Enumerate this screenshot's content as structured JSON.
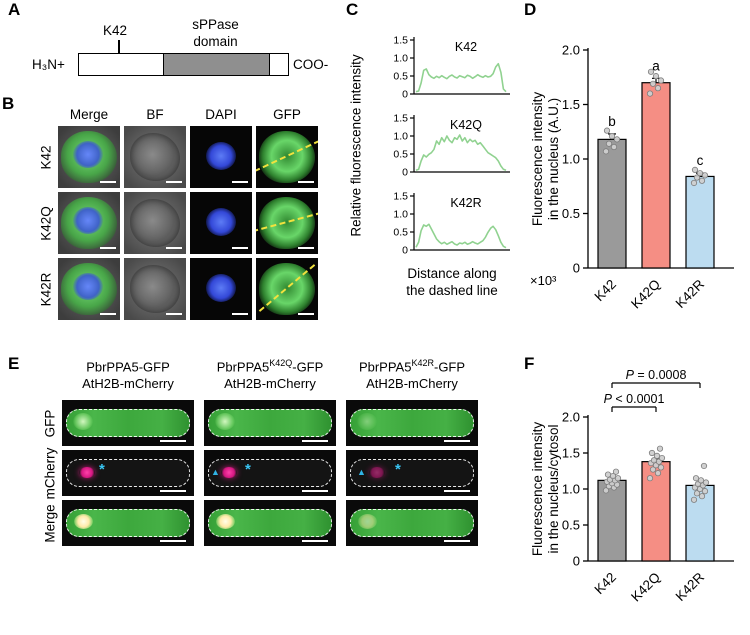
{
  "figure": {
    "panel_a": {
      "label": "A",
      "n_terminus": "H₃N+",
      "c_terminus": "COO-",
      "residue_label": "K42",
      "domain_line1": "sPPase",
      "domain_line2": "domain"
    },
    "panel_b": {
      "label": "B",
      "columns": [
        "Merge",
        "BF",
        "DAPI",
        "GFP"
      ],
      "rows": [
        "K42",
        "K42Q",
        "K42R"
      ]
    },
    "panel_c": {
      "label": "C",
      "ylabel": "Relative fluorescence intensity",
      "xlabel_line1": "Distance along",
      "xlabel_line2": "the dashed line"
    },
    "panel_d": {
      "label": "D",
      "ylabel_line1": "Fluorescence intensity",
      "ylabel_line2": "in the nucleus (A.U.)",
      "scale_label": "×10³"
    },
    "panel_e": {
      "label": "E",
      "columns": [
        {
          "line1_pre": "PbrPPA5",
          "line1_sup": "",
          "line1_post": "-GFP",
          "line2": "AtH2B-mCherry"
        },
        {
          "line1_pre": "PbrPPA5",
          "line1_sup": "K42Q",
          "line1_post": "-GFP",
          "line2": "AtH2B-mCherry"
        },
        {
          "line1_pre": "PbrPPA5",
          "line1_sup": "K42R",
          "line1_post": "-GFP",
          "line2": "AtH2B-mCherry"
        }
      ],
      "rows": [
        "GFP",
        "mCherry",
        "Merge"
      ],
      "markers": {
        "asterisk": "*",
        "arrowhead": "▲"
      }
    },
    "panel_f": {
      "label": "F",
      "ylabel_line1": "Fluorescence intensity",
      "ylabel_line2": "in the nucleus/cytosol"
    }
  },
  "chart_data": [
    {
      "panel": "C",
      "type": "line",
      "ylabel": "Relative fluorescence intensity",
      "xlabel": "Distance along the dashed line",
      "ylim": [
        0,
        1.5
      ],
      "yticks": [
        0,
        0.5,
        1.0,
        1.5
      ],
      "line_color": "#90d290",
      "subplots": [
        {
          "name": "K42",
          "y": [
            0.04,
            0.06,
            0.3,
            0.68,
            0.72,
            0.55,
            0.48,
            0.44,
            0.5,
            0.46,
            0.52,
            0.47,
            0.43,
            0.5,
            0.54,
            0.48,
            0.45,
            0.52,
            0.49,
            0.46,
            0.53,
            0.5,
            0.44,
            0.49,
            0.55,
            0.5,
            0.47,
            0.52,
            0.48,
            0.5,
            0.58,
            0.78,
            0.88,
            0.62,
            0.12,
            0.04
          ]
        },
        {
          "name": "K42Q",
          "y": [
            0.02,
            0.05,
            0.3,
            0.48,
            0.42,
            0.5,
            0.55,
            0.65,
            0.9,
            0.8,
            1.0,
            0.88,
            1.05,
            0.92,
            0.85,
            1.0,
            0.95,
            1.08,
            0.9,
            1.0,
            0.85,
            0.95,
            0.88,
            0.92,
            0.8,
            0.85,
            0.75,
            0.65,
            0.55,
            0.5,
            0.45,
            0.4,
            0.3,
            0.15,
            0.05,
            0.02
          ]
        },
        {
          "name": "K42R",
          "y": [
            0.05,
            0.2,
            0.55,
            0.72,
            0.68,
            0.74,
            0.6,
            0.45,
            0.3,
            0.22,
            0.16,
            0.2,
            0.14,
            0.18,
            0.22,
            0.15,
            0.12,
            0.18,
            0.16,
            0.2,
            0.14,
            0.17,
            0.22,
            0.18,
            0.15,
            0.2,
            0.25,
            0.35,
            0.5,
            0.62,
            0.68,
            0.58,
            0.4,
            0.2,
            0.08,
            0.04
          ]
        }
      ]
    },
    {
      "panel": "D",
      "type": "bar",
      "ylabel": "Fluorescence intensity in the nucleus (A.U.)",
      "scale_note": "×10³",
      "ylim": [
        0,
        2.0
      ],
      "yticks": [
        0,
        0.5,
        1.0,
        1.5,
        2.0
      ],
      "categories": [
        "K42",
        "K42Q",
        "K42R"
      ],
      "values": [
        1.18,
        1.7,
        0.84
      ],
      "errors": [
        0.05,
        0.04,
        0.03
      ],
      "letters": [
        "b",
        "a",
        "c"
      ],
      "bar_colors": [
        "#9a9a9a",
        "#f58e84",
        "#bcdcf0"
      ],
      "points": [
        [
          1.07,
          1.11,
          1.14,
          1.18,
          1.21,
          1.26
        ],
        [
          1.6,
          1.65,
          1.69,
          1.72,
          1.76,
          1.8
        ],
        [
          0.78,
          0.8,
          0.83,
          0.85,
          0.87,
          0.9
        ]
      ]
    },
    {
      "panel": "F",
      "type": "bar",
      "ylabel": "Fluorescence intensity in the nucleus/cytosol",
      "ylim": [
        0,
        2.0
      ],
      "yticks": [
        0,
        0.5,
        1.0,
        1.5,
        2.0
      ],
      "categories": [
        "K42",
        "K42Q",
        "K42R"
      ],
      "values": [
        1.12,
        1.38,
        1.05
      ],
      "errors": [
        0.04,
        0.04,
        0.04
      ],
      "bar_colors": [
        "#9a9a9a",
        "#f58e84",
        "#bcdcf0"
      ],
      "points": [
        [
          0.98,
          1.02,
          1.04,
          1.06,
          1.08,
          1.1,
          1.12,
          1.13,
          1.15,
          1.18,
          1.2,
          1.24
        ],
        [
          1.15,
          1.22,
          1.27,
          1.3,
          1.33,
          1.36,
          1.38,
          1.4,
          1.43,
          1.46,
          1.5,
          1.56
        ],
        [
          0.85,
          0.9,
          0.94,
          0.97,
          1.0,
          1.02,
          1.05,
          1.07,
          1.09,
          1.12,
          1.15,
          1.32
        ]
      ],
      "brackets": [
        {
          "from": "K42",
          "to": "K42Q",
          "label": "P < 0.0001"
        },
        {
          "from": "K42",
          "to": "K42R",
          "label": "P = 0.0008"
        }
      ]
    }
  ]
}
